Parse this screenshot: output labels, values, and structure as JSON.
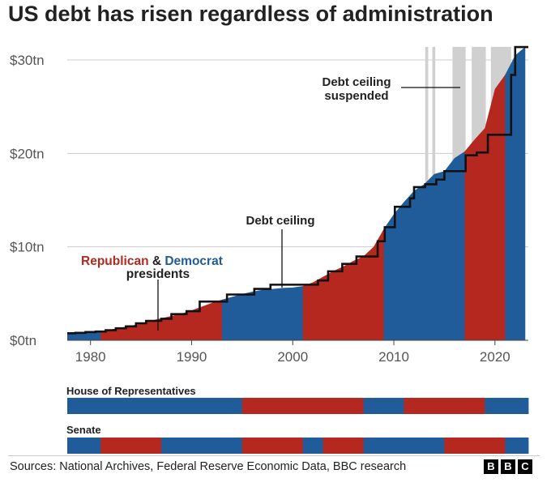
{
  "title": "US debt has risen regardless of administration",
  "footer": {
    "sources": "Sources: National Archives, Federal Reserve Economic Data, BBC research",
    "logo": [
      "B",
      "B",
      "C"
    ]
  },
  "colors": {
    "republican": "#b5281f",
    "democrat": "#1f5c99",
    "ceiling": "#111111",
    "suspended": "#d0d0d0",
    "grid": "#cccccc"
  },
  "legend": {
    "republican": "Republican",
    "amp": " & ",
    "democrat": "Democrat",
    "line2": "presidents"
  },
  "annotations": {
    "ceiling": "Debt ceiling",
    "suspended_line1": "Debt ceiling",
    "suspended_line2": "suspended"
  },
  "chambers": {
    "house_label": "House of Representatives",
    "senate_label": "Senate"
  },
  "chart_data": {
    "type": "area",
    "xlim": [
      1977.7,
      2023.3
    ],
    "ylim": [
      0,
      30
    ],
    "y_ticks": [
      0,
      10,
      20,
      30
    ],
    "y_tick_labels": [
      "$0tn",
      "$10tn",
      "$20tn",
      "$30tn"
    ],
    "x_ticks": [
      1980,
      1990,
      2000,
      2010,
      2020
    ],
    "x_tick_labels": [
      "1980",
      "1990",
      "2000",
      "2010",
      "2020"
    ],
    "y_unit": "$ trillion",
    "grid": true,
    "debt": {
      "x": [
        1977.7,
        1979,
        1980,
        1981,
        1982,
        1983,
        1984,
        1985,
        1986,
        1987,
        1988,
        1989,
        1990,
        1991,
        1992,
        1993,
        1994,
        1995,
        1996,
        1997,
        1998,
        1999,
        2000,
        2001,
        2002,
        2003,
        2004,
        2005,
        2006,
        2007,
        2008,
        2009,
        2010,
        2011,
        2012,
        2013,
        2014,
        2015,
        2016,
        2017,
        2018,
        2019,
        2020,
        2021,
        2022,
        2023
      ],
      "y": [
        0.7,
        0.8,
        0.9,
        1.0,
        1.15,
        1.35,
        1.55,
        1.8,
        2.1,
        2.35,
        2.6,
        2.85,
        3.2,
        3.6,
        4.0,
        4.35,
        4.65,
        4.95,
        5.2,
        5.4,
        5.5,
        5.6,
        5.65,
        5.8,
        6.2,
        6.8,
        7.4,
        7.9,
        8.5,
        9.0,
        10.0,
        11.9,
        13.5,
        14.8,
        16.0,
        16.7,
        17.8,
        18.1,
        19.5,
        20.2,
        21.5,
        22.7,
        26.9,
        28.4,
        30.5,
        31.4
      ]
    },
    "administrations": [
      {
        "party": "D",
        "start": 1977.7,
        "end": 1981.0
      },
      {
        "party": "R",
        "start": 1981.0,
        "end": 1993.0
      },
      {
        "party": "D",
        "start": 1993.0,
        "end": 2001.0
      },
      {
        "party": "R",
        "start": 2001.0,
        "end": 2009.0
      },
      {
        "party": "D",
        "start": 2009.0,
        "end": 2017.0
      },
      {
        "party": "R",
        "start": 2017.0,
        "end": 2021.0
      },
      {
        "party": "D",
        "start": 2021.0,
        "end": 2023.3
      }
    ],
    "debt_ceiling": {
      "steps": [
        [
          1977.7,
          0.75
        ],
        [
          1978.5,
          0.8
        ],
        [
          1979.5,
          0.88
        ],
        [
          1980.5,
          0.94
        ],
        [
          1981.5,
          1.08
        ],
        [
          1982.5,
          1.29
        ],
        [
          1983.5,
          1.49
        ],
        [
          1984.5,
          1.82
        ],
        [
          1985.5,
          2.08
        ],
        [
          1987.0,
          2.3
        ],
        [
          1988.0,
          2.8
        ],
        [
          1989.5,
          3.12
        ],
        [
          1990.8,
          4.15
        ],
        [
          1993.5,
          4.9
        ],
        [
          1996.2,
          5.5
        ],
        [
          1997.8,
          5.95
        ],
        [
          2002.5,
          6.4
        ],
        [
          2003.5,
          7.38
        ],
        [
          2004.9,
          8.18
        ],
        [
          2006.3,
          8.97
        ],
        [
          2008.4,
          10.6
        ],
        [
          2009.1,
          12.1
        ],
        [
          2010.1,
          14.29
        ],
        [
          2011.6,
          15.19
        ],
        [
          2012.0,
          16.39
        ],
        [
          2013.1,
          16.7
        ],
        [
          2014.2,
          17.2
        ],
        [
          2015.0,
          18.1
        ],
        [
          2017.1,
          19.8
        ],
        [
          2018.2,
          20.1
        ],
        [
          2019.3,
          22.0
        ],
        [
          2021.6,
          28.4
        ],
        [
          2022.0,
          31.38
        ],
        [
          2023.3,
          31.38
        ]
      ],
      "suspensions": [
        [
          2013.1,
          2013.4
        ],
        [
          2013.8,
          2014.1
        ],
        [
          2015.8,
          2017.1
        ],
        [
          2017.7,
          2019.1
        ],
        [
          2019.6,
          2021.6
        ]
      ]
    },
    "house": [
      {
        "party": "D",
        "start": 1977.7,
        "end": 1995.0
      },
      {
        "party": "R",
        "start": 1995.0,
        "end": 2007.0
      },
      {
        "party": "D",
        "start": 2007.0,
        "end": 2011.0
      },
      {
        "party": "R",
        "start": 2011.0,
        "end": 2019.0
      },
      {
        "party": "D",
        "start": 2019.0,
        "end": 2023.3
      }
    ],
    "senate": [
      {
        "party": "D",
        "start": 1977.7,
        "end": 1981.0
      },
      {
        "party": "R",
        "start": 1981.0,
        "end": 1987.0
      },
      {
        "party": "D",
        "start": 1987.0,
        "end": 1995.0
      },
      {
        "party": "R",
        "start": 1995.0,
        "end": 2001.0
      },
      {
        "party": "D",
        "start": 2001.0,
        "end": 2003.0
      },
      {
        "party": "R",
        "start": 2003.0,
        "end": 2007.0
      },
      {
        "party": "D",
        "start": 2007.0,
        "end": 2015.0
      },
      {
        "party": "R",
        "start": 2015.0,
        "end": 2021.0
      },
      {
        "party": "D",
        "start": 2021.0,
        "end": 2023.3
      }
    ]
  }
}
